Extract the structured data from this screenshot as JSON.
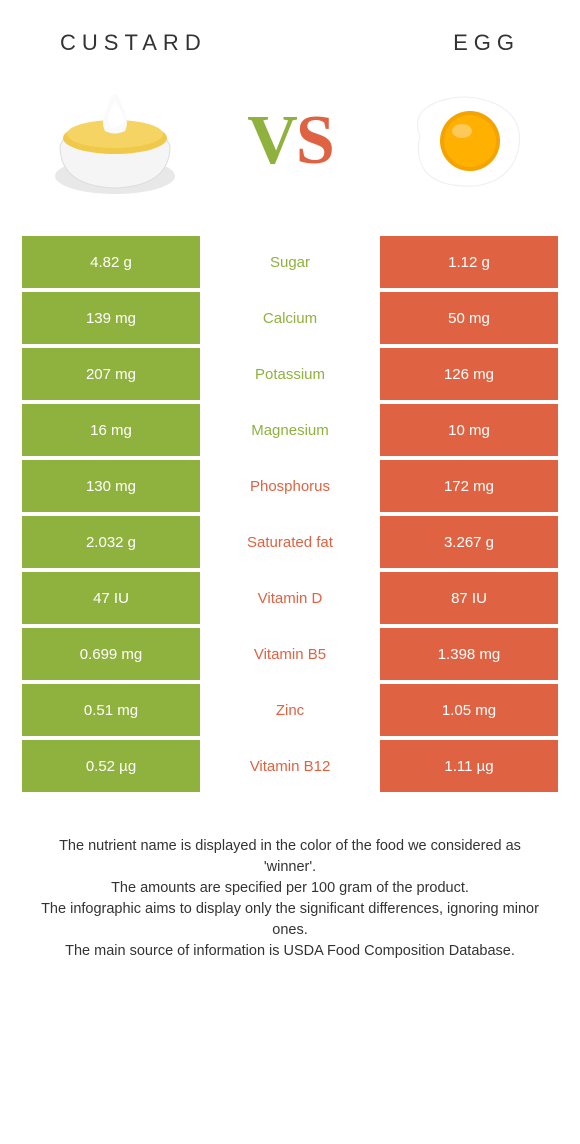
{
  "header": {
    "left_title": "CUSTARD",
    "right_title": "EGG"
  },
  "colors": {
    "left": "#8fb23e",
    "right": "#df6342",
    "white": "#ffffff",
    "text": "#333333"
  },
  "vs": {
    "v": "V",
    "s": "S"
  },
  "rows": [
    {
      "nutrient": "Sugar",
      "left": "4.82 g",
      "right": "1.12 g",
      "winner": "left"
    },
    {
      "nutrient": "Calcium",
      "left": "139 mg",
      "right": "50 mg",
      "winner": "left"
    },
    {
      "nutrient": "Potassium",
      "left": "207 mg",
      "right": "126 mg",
      "winner": "left"
    },
    {
      "nutrient": "Magnesium",
      "left": "16 mg",
      "right": "10 mg",
      "winner": "left"
    },
    {
      "nutrient": "Phosphorus",
      "left": "130 mg",
      "right": "172 mg",
      "winner": "right"
    },
    {
      "nutrient": "Saturated fat",
      "left": "2.032 g",
      "right": "3.267 g",
      "winner": "right"
    },
    {
      "nutrient": "Vitamin D",
      "left": "47 IU",
      "right": "87 IU",
      "winner": "right"
    },
    {
      "nutrient": "Vitamin B5",
      "left": "0.699 mg",
      "right": "1.398 mg",
      "winner": "right"
    },
    {
      "nutrient": "Zinc",
      "left": "0.51 mg",
      "right": "1.05 mg",
      "winner": "right"
    },
    {
      "nutrient": "Vitamin B12",
      "left": "0.52 µg",
      "right": "1.11 µg",
      "winner": "right"
    }
  ],
  "footer": {
    "line1": "The nutrient name is displayed in the color of the food we considered as 'winner'.",
    "line2": "The amounts are specified per 100 gram of the product.",
    "line3": "The infographic aims to display only the significant differences, ignoring minor ones.",
    "line4": "The main source of information is USDA Food Composition Database."
  }
}
